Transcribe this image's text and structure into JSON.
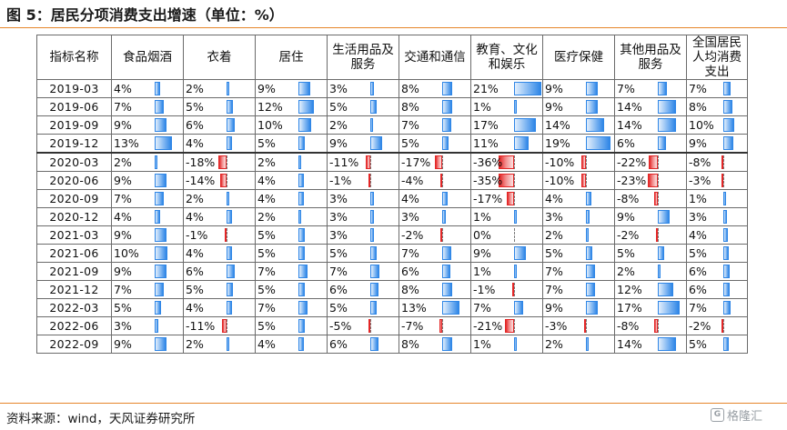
{
  "figure": {
    "title": "图 5：居民分项消费支出增速（单位：%）",
    "source": "资料来源：wind，天风证券研究所",
    "watermark": "格隆汇",
    "watermark_icon": "g-logo-icon"
  },
  "colors": {
    "positive_bar": "#2f86e6",
    "negative_bar": "#e32626",
    "accent_rule": "#e6852a"
  },
  "table": {
    "headers": [
      "指标名称",
      "食品烟酒",
      "衣着",
      "居住",
      "生活用品及服务",
      "交通和通信",
      "教育、文化和娱乐",
      "医疗保健",
      "其他用品及服务",
      "全国居民人均消费支出"
    ],
    "bar_scale_max": 36,
    "rows": [
      {
        "date": "2019-03",
        "values": [
          4,
          2,
          9,
          3,
          8,
          21,
          9,
          7,
          7
        ]
      },
      {
        "date": "2019-06",
        "values": [
          7,
          5,
          12,
          5,
          8,
          1,
          9,
          14,
          8
        ]
      },
      {
        "date": "2019-09",
        "values": [
          9,
          6,
          10,
          2,
          7,
          17,
          14,
          14,
          10
        ]
      },
      {
        "date": "2019-12",
        "values": [
          13,
          4,
          5,
          9,
          5,
          11,
          19,
          6,
          9
        ]
      },
      {
        "date": "2020-03",
        "values": [
          2,
          -18,
          2,
          -11,
          -17,
          -36,
          -10,
          -22,
          -8
        ]
      },
      {
        "date": "2020-06",
        "values": [
          9,
          -14,
          4,
          -1,
          -4,
          -35,
          -10,
          -23,
          -3
        ]
      },
      {
        "date": "2020-09",
        "values": [
          7,
          2,
          4,
          3,
          4,
          -17,
          4,
          -8,
          1
        ]
      },
      {
        "date": "2020-12",
        "values": [
          4,
          4,
          2,
          3,
          3,
          1,
          3,
          9,
          3
        ]
      },
      {
        "date": "2021-03",
        "values": [
          9,
          -1,
          5,
          3,
          -2,
          0,
          2,
          -2,
          4
        ]
      },
      {
        "date": "2021-06",
        "values": [
          10,
          4,
          5,
          5,
          7,
          9,
          5,
          5,
          5
        ]
      },
      {
        "date": "2021-09",
        "values": [
          9,
          6,
          7,
          7,
          6,
          1,
          7,
          2,
          6
        ]
      },
      {
        "date": "2021-12",
        "values": [
          7,
          5,
          5,
          6,
          8,
          -1,
          7,
          12,
          6
        ]
      },
      {
        "date": "2022-03",
        "values": [
          5,
          4,
          7,
          5,
          13,
          7,
          9,
          17,
          7
        ]
      },
      {
        "date": "2022-06",
        "values": [
          3,
          -11,
          5,
          -5,
          -7,
          -21,
          -3,
          -8,
          -2
        ]
      },
      {
        "date": "2022-09",
        "values": [
          9,
          2,
          4,
          6,
          8,
          1,
          2,
          14,
          5
        ]
      }
    ]
  }
}
